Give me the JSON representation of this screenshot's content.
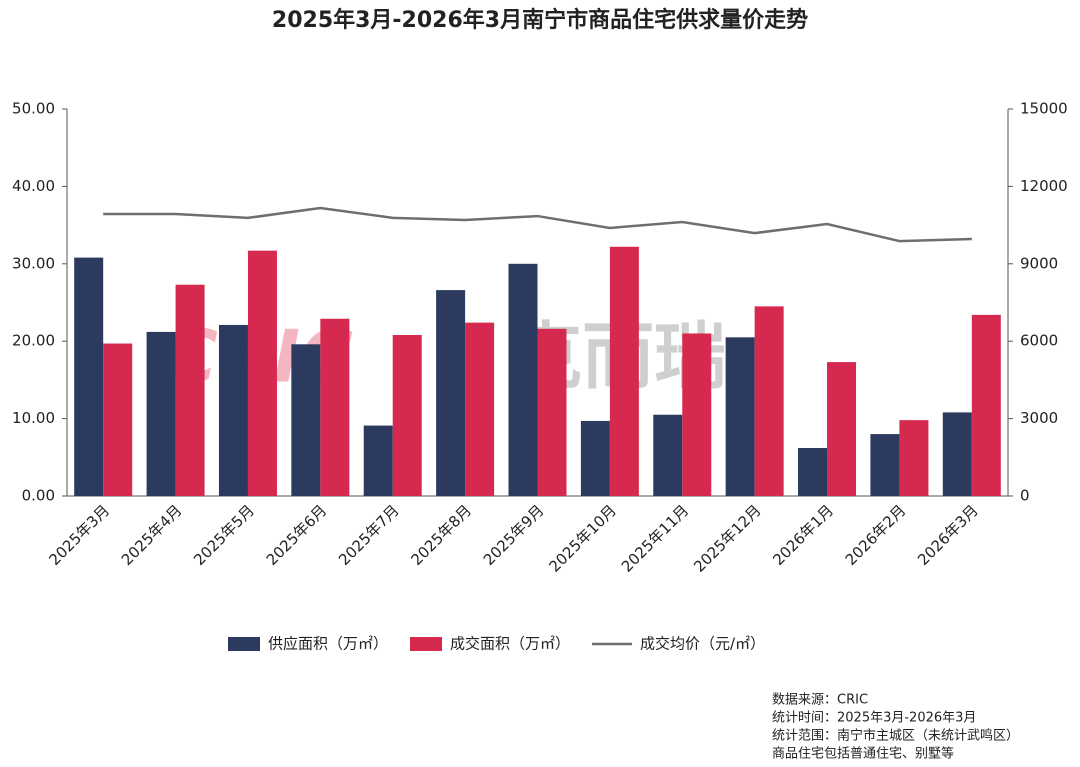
{
  "chart_data": {
    "type": "bar",
    "title": "2025年3月-2026年3月南宁市商品住宅供求量价走势",
    "categories": [
      "2025年3月",
      "2025年4月",
      "2025年5月",
      "2025年6月",
      "2025年7月",
      "2025年8月",
      "2025年9月",
      "2025年10月",
      "2025年11月",
      "2025年12月",
      "2026年1月",
      "2026年2月",
      "2026年3月"
    ],
    "series": [
      {
        "name": "供应面积（万㎡）",
        "color": "#2b3a5e",
        "type": "bar",
        "values": [
          30.8,
          21.2,
          22.1,
          19.6,
          9.1,
          26.6,
          30.0,
          9.7,
          10.5,
          20.5,
          6.2,
          8.0,
          10.8
        ]
      },
      {
        "name": "成交面积（万㎡）",
        "color": "#d6294f",
        "type": "bar",
        "values": [
          19.7,
          27.3,
          31.7,
          22.9,
          20.8,
          22.4,
          21.6,
          32.2,
          21.0,
          24.5,
          17.3,
          9.8,
          23.4
        ]
      },
      {
        "name": "成交均价（元/㎡）",
        "color": "#6e6e6e",
        "type": "line",
        "axis": "y2",
        "values": [
          10930,
          10930,
          10780,
          11160,
          10780,
          10700,
          10850,
          10390,
          10620,
          10190,
          10540,
          9880,
          9960
        ]
      }
    ],
    "ylim": [
      0,
      50
    ],
    "yticks": [
      {
        "value": 0,
        "label": "0.00"
      },
      {
        "value": 10,
        "label": "10.00"
      },
      {
        "value": 20,
        "label": "20.00"
      },
      {
        "value": 30,
        "label": "30.00"
      },
      {
        "value": 40,
        "label": "40.00"
      },
      {
        "value": 50,
        "label": "50.00"
      }
    ],
    "y2lim": [
      0,
      15000
    ],
    "y2ticks": [
      0,
      3000,
      6000,
      9000,
      12000,
      15000
    ],
    "watermark": [
      "CRIC",
      "克而瑞"
    ],
    "notes": [
      "数据来源：CRIC",
      "统计时间：2025年3月-2026年3月",
      "统计范围：南宁市主城区（未统计武鸣区）",
      "商品住宅包括普通住宅、别墅等"
    ]
  }
}
